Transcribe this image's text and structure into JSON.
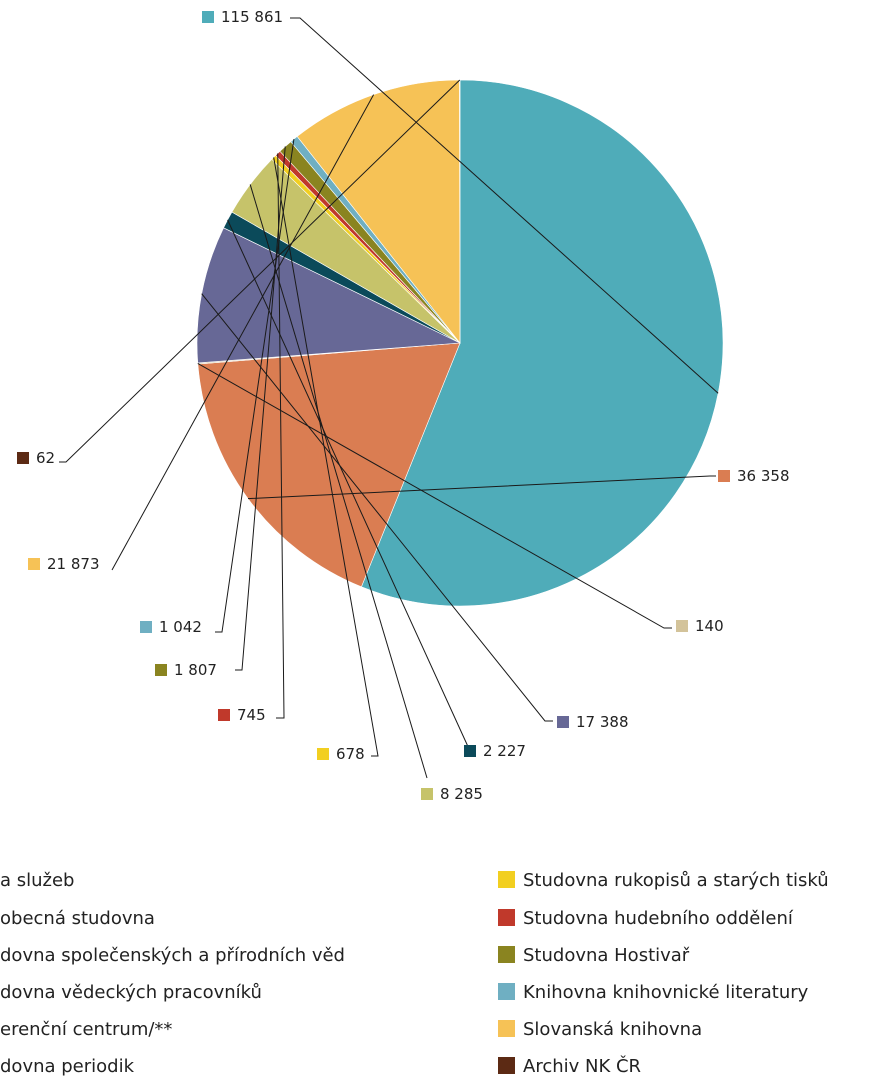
{
  "chart_data": {
    "type": "pie",
    "legend_position": "bottom",
    "slices": [
      {
        "name": "Ústřední obsluha a služeb",
        "value": 115861,
        "label": "115 861",
        "color": "#4FACB9"
      },
      {
        "name": "Všeobecná studovna",
        "value": 36358,
        "label": "36 358",
        "color": "#DA7D52"
      },
      {
        "name": "Studovna společenských a přírodních věd",
        "value": 140,
        "label": "140",
        "color": "#D3C39A"
      },
      {
        "name": "Studovna vědeckých pracovníků",
        "value": 17388,
        "label": "17 388",
        "color": "#676896"
      },
      {
        "name": "Referenční centrum/**",
        "value": 2227,
        "label": "2 227",
        "color": "#0B4A5A"
      },
      {
        "name": "Studovna periodik",
        "value": 8285,
        "label": "8 285",
        "color": "#C6C36A"
      },
      {
        "name": "Studovna rukopisů a starých tisků",
        "value": 678,
        "label": "678",
        "color": "#F2CF20"
      },
      {
        "name": "Studovna hudebního oddělení",
        "value": 745,
        "label": "745",
        "color": "#C0392B"
      },
      {
        "name": "Studovna Hostivař",
        "value": 1807,
        "label": "1 807",
        "color": "#8A8420"
      },
      {
        "name": "Knihovna knihovnické literatury",
        "value": 1042,
        "label": "1 042",
        "color": "#6FAFC2"
      },
      {
        "name": "Slovanská knihovna",
        "value": 21873,
        "label": "21 873",
        "color": "#F6C256"
      },
      {
        "name": "Archiv NK ČR",
        "value": 62,
        "label": "62",
        "color": "#5C2A14"
      }
    ],
    "legend_left_visible": [
      "a služeb",
      "obecná studovna",
      "dovna společenských a přírodních věd",
      "dovna vědeckých pracovníků",
      "erenční centrum/**",
      "dovna periodik"
    ]
  }
}
